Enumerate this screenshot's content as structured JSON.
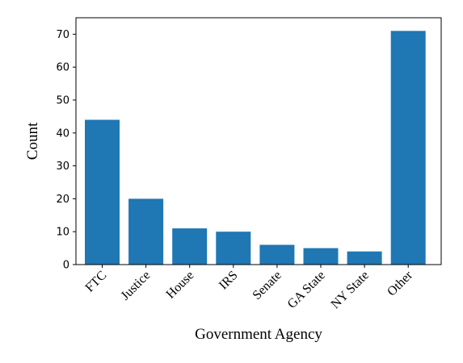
{
  "colors": {
    "bar": "#1f77b4",
    "axis": "#000000",
    "background": "#ffffff"
  },
  "chart_data": {
    "type": "bar",
    "title": "",
    "xlabel": "Government Agency",
    "ylabel": "Count",
    "categories": [
      "FTC",
      "Justice",
      "House",
      "IRS",
      "Senate",
      "GA State",
      "NY State",
      "Other"
    ],
    "values": [
      44,
      20,
      11,
      10,
      6,
      5,
      4,
      71
    ],
    "ylim": [
      0,
      75
    ],
    "yticks": [
      0,
      10,
      20,
      30,
      40,
      50,
      60,
      70
    ],
    "grid": false,
    "legend": "none"
  }
}
